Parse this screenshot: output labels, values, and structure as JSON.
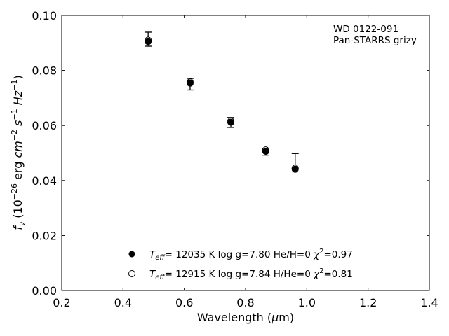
{
  "chart_data": {
    "type": "scatter",
    "title": "",
    "xlabel": "Wavelength (μm)",
    "ylabel": "f_ν (10^-26 erg cm^-2 s^-1 Hz^-1)",
    "xlim": [
      0.2,
      1.4
    ],
    "ylim": [
      0.0,
      0.1
    ],
    "x_ticks": [
      "0.2",
      "0.4",
      "0.6",
      "0.8",
      "1.0",
      "1.2",
      "1.4"
    ],
    "y_ticks": [
      "0.00",
      "0.02",
      "0.04",
      "0.06",
      "0.08",
      "0.10"
    ],
    "grid": false,
    "annotation": [
      "WD 0122-091",
      "Pan-STARRS grizy"
    ],
    "observed": {
      "x": [
        0.482,
        0.619,
        0.752,
        0.866,
        0.962
      ],
      "y": [
        0.0913,
        0.0751,
        0.0611,
        0.0505,
        0.0455
      ],
      "err_low": [
        0.0025,
        0.0022,
        0.0018,
        0.0013,
        0.0012
      ],
      "err_high": [
        0.0026,
        0.002,
        0.0018,
        0.0012,
        0.0043
      ]
    },
    "series": [
      {
        "name": "T_eff= 12035 K  log g=7.80  He/H=0  χ²=0.97",
        "marker": "filled",
        "x": [
          0.482,
          0.619,
          0.752,
          0.866,
          0.962
        ],
        "y": [
          0.0905,
          0.0754,
          0.0612,
          0.0506,
          0.0441
        ]
      },
      {
        "name": "T_eff= 12915 K  log g=7.84  H/He=0  χ²=0.81",
        "marker": "open",
        "x": [
          0.482,
          0.619,
          0.752,
          0.866,
          0.962
        ],
        "y": [
          0.091,
          0.0758,
          0.0616,
          0.0511,
          0.0445
        ]
      }
    ],
    "legend": [
      {
        "teff": "12035",
        "logg": "log g=7.80",
        "comp": "He/H=0",
        "chi": "=0.97"
      },
      {
        "teff": "12915",
        "logg": "log g=7.84",
        "comp": "H/He=0",
        "chi": "=0.81"
      }
    ],
    "legend_position": "bottom-center",
    "colors": {
      "marker": "#000000",
      "axes": "#000000",
      "background": "#ffffff"
    }
  }
}
